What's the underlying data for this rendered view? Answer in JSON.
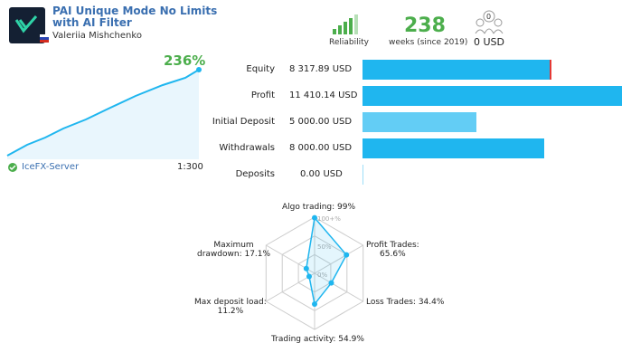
{
  "header": {
    "title": "PAI Unique Mode No Limits with AI Filter",
    "author": "Valeriia Mishchenko"
  },
  "stats": {
    "reliability_label": "Reliability",
    "weeks": "238",
    "weeks_label": "weeks (since 2019)",
    "subscribers": "0",
    "funds": "0 USD"
  },
  "growth": "236%",
  "server": "IceFX-Server",
  "leverage": "1:300",
  "balance": {
    "categories": [
      "Equity",
      "Profit",
      "Initial Deposit",
      "Withdrawals",
      "Deposits"
    ],
    "values": [
      8317.89,
      11410.14,
      5000,
      8000,
      0
    ],
    "value_labels": [
      "8 317.89 USD",
      "11 410.14 USD",
      "5 000.00 USD",
      "8 000.00 USD",
      "0.00 USD"
    ],
    "colors": [
      "#1fb6ef",
      "#1fb6ef",
      "#63cdf5",
      "#1fb6ef",
      "#9edff8"
    ]
  },
  "radar": {
    "labels": [
      "Algo trading: 99%",
      "Profit Trades:\n65.6%",
      "Loss Trades: 34.4%",
      "Trading activity: 54.9%",
      "Max deposit load:\n11.2%",
      "Maximum\ndrawdown: 17.1%"
    ],
    "values": [
      99,
      65.6,
      34.4,
      54.9,
      11.2,
      17.1
    ],
    "rings": [
      "100+%",
      "50%",
      "0%"
    ],
    "color": "#1fb6ef"
  }
}
